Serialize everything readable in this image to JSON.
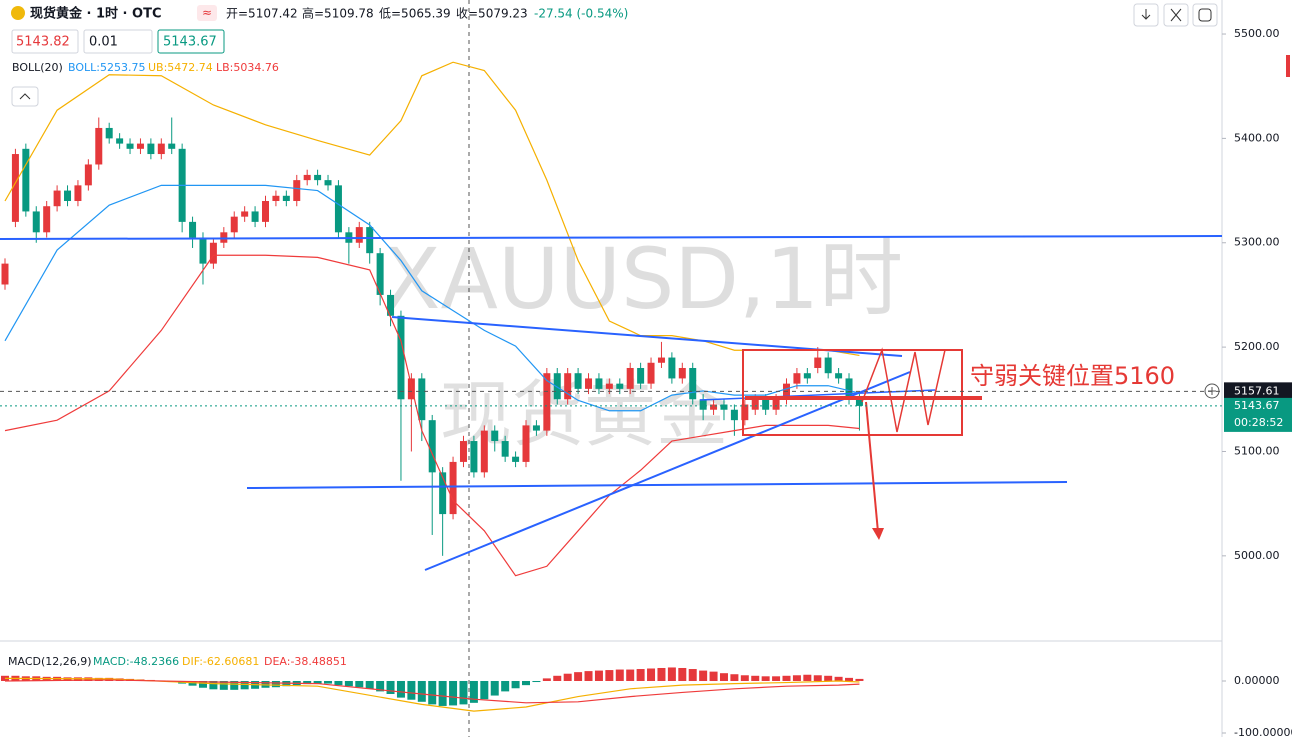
{
  "header": {
    "symbol": "现货黄金 · 1时 · OTC",
    "ohlc": [
      "开=5107.42",
      "高=5109.78",
      "低=5065.39",
      "收=5079.23"
    ],
    "change": "-27.54 (-0.54%)",
    "inputs": [
      "5143.82",
      "0.01",
      "5143.67"
    ]
  },
  "chart_data": [
    {
      "type": "candlestick",
      "watermark": [
        "XAUUSD,1时",
        "现货黄金"
      ],
      "annotation": "守弱关键位置5160",
      "indicator_legend": [
        "BOLL(20)",
        "BOLL:5253.75",
        "UB:5472.74",
        "LB:5034.76"
      ],
      "up_color": "#e5383b",
      "down_color": "#089981",
      "ylim": [
        4918.4,
        5532.6
      ],
      "yticks": [
        {
          "value": 5000,
          "label": "5000.00"
        },
        {
          "value": 5100,
          "label": "5100.00"
        },
        {
          "value": 5200,
          "label": "5200.00"
        },
        {
          "value": 5300,
          "label": "5300.00"
        },
        {
          "value": 5400,
          "label": "5400.00"
        },
        {
          "value": 5500,
          "label": "5500.00"
        }
      ],
      "grid": false,
      "crosshair_price": 5157.61,
      "last_price": 5143.67,
      "countdown": "00:28:52",
      "open": [
        5260,
        5320,
        5390,
        5330,
        5310,
        5335,
        5350,
        5340,
        5355,
        5375,
        5410,
        5400,
        5395,
        5390,
        5395,
        5385,
        5395,
        5390,
        5320,
        5305,
        5280,
        5300,
        5310,
        5325,
        5330,
        5320,
        5340,
        5345,
        5340,
        5360,
        5365,
        5360,
        5355,
        5310,
        5300,
        5315,
        5290,
        5250,
        5230,
        5150,
        5170,
        5130,
        5080,
        5040,
        5090,
        5110,
        5080,
        5120,
        5110,
        5095,
        5090,
        5125,
        5120,
        5175,
        5150,
        5175,
        5160,
        5170,
        5160,
        5165,
        5160,
        5180,
        5165,
        5185,
        5190,
        5170,
        5180,
        5150,
        5140,
        5145,
        5140,
        5130,
        5140,
        5150,
        5140,
        5150,
        5165,
        5175,
        5180,
        5190,
        5175,
        5170,
        5150
      ],
      "high": [
        5285,
        5390,
        5395,
        5335,
        5340,
        5355,
        5355,
        5360,
        5380,
        5420,
        5415,
        5405,
        5400,
        5400,
        5400,
        5400,
        5420,
        5395,
        5325,
        5310,
        5305,
        5315,
        5330,
        5335,
        5335,
        5345,
        5350,
        5350,
        5365,
        5370,
        5370,
        5365,
        5360,
        5315,
        5320,
        5320,
        5295,
        5255,
        5235,
        5175,
        5175,
        5135,
        5085,
        5095,
        5115,
        5115,
        5125,
        5125,
        5115,
        5100,
        5130,
        5130,
        5180,
        5180,
        5180,
        5180,
        5175,
        5175,
        5170,
        5170,
        5185,
        5185,
        5190,
        5205,
        5195,
        5185,
        5185,
        5155,
        5150,
        5150,
        5145,
        5150,
        5155,
        5155,
        5155,
        5170,
        5180,
        5180,
        5200,
        5195,
        5180,
        5175,
        5155
      ],
      "low": [
        5255,
        5315,
        5325,
        5300,
        5305,
        5330,
        5335,
        5335,
        5350,
        5370,
        5395,
        5390,
        5385,
        5385,
        5380,
        5380,
        5385,
        5310,
        5295,
        5260,
        5275,
        5295,
        5305,
        5320,
        5315,
        5315,
        5335,
        5335,
        5335,
        5355,
        5355,
        5350,
        5305,
        5280,
        5295,
        5280,
        5240,
        5220,
        5072,
        5100,
        5110,
        5020,
        5000,
        5035,
        5085,
        5075,
        5075,
        5100,
        5090,
        5085,
        5085,
        5115,
        5115,
        5145,
        5145,
        5155,
        5155,
        5155,
        5155,
        5155,
        5155,
        5160,
        5160,
        5180,
        5165,
        5165,
        5145,
        5130,
        5135,
        5130,
        5115,
        5125,
        5135,
        5135,
        5135,
        5145,
        5160,
        5165,
        5175,
        5170,
        5165,
        5145,
        5120
      ],
      "close": [
        5280,
        5385,
        5330,
        5310,
        5335,
        5350,
        5340,
        5355,
        5375,
        5410,
        5400,
        5395,
        5390,
        5395,
        5385,
        5395,
        5390,
        5320,
        5305,
        5280,
        5300,
        5310,
        5325,
        5330,
        5320,
        5340,
        5345,
        5340,
        5360,
        5365,
        5360,
        5355,
        5310,
        5300,
        5315,
        5290,
        5250,
        5230,
        5150,
        5170,
        5130,
        5080,
        5040,
        5090,
        5110,
        5080,
        5120,
        5110,
        5095,
        5090,
        5125,
        5120,
        5175,
        5150,
        5175,
        5160,
        5170,
        5160,
        5165,
        5160,
        5180,
        5165,
        5185,
        5190,
        5170,
        5180,
        5150,
        5140,
        5145,
        5140,
        5130,
        5145,
        5150,
        5140,
        5150,
        5165,
        5175,
        5170,
        5190,
        5175,
        5170,
        5150,
        5143.67
      ],
      "series": [
        {
          "color": "#f5b000",
          "x": [
            0,
            5,
            10,
            15,
            20,
            25,
            30,
            35,
            38,
            40,
            43,
            46,
            49,
            52,
            55,
            58,
            61,
            64,
            67,
            70,
            73,
            76,
            79,
            82
          ],
          "values": [
            5340,
            5427,
            5461,
            5460,
            5432,
            5413,
            5398,
            5384,
            5417,
            5460,
            5473,
            5465,
            5427,
            5360,
            5283,
            5225,
            5211,
            5211,
            5206,
            5197,
            5197,
            5197,
            5197,
            5192
          ]
        },
        {
          "color": "#2196f3",
          "x": [
            0,
            5,
            10,
            15,
            20,
            25,
            30,
            35,
            38,
            40,
            43,
            46,
            49,
            52,
            55,
            58,
            61,
            64,
            67,
            70,
            73,
            76,
            79,
            82
          ],
          "values": [
            5206,
            5293,
            5336,
            5355,
            5355,
            5355,
            5350,
            5317,
            5283,
            5254,
            5235,
            5216,
            5201,
            5168,
            5149,
            5139,
            5139,
            5154,
            5158,
            5154,
            5154,
            5163,
            5163,
            5156
          ]
        },
        {
          "color": "#ef3b3b",
          "x": [
            0,
            5,
            10,
            15,
            20,
            25,
            30,
            35,
            38,
            40,
            43,
            46,
            49,
            52,
            55,
            58,
            61,
            64,
            67,
            70,
            73,
            76,
            79,
            82
          ],
          "values": [
            5120,
            5130,
            5158,
            5216,
            5288,
            5288,
            5286,
            5274,
            5206,
            5120,
            5053,
            5024,
            4981,
            4990,
            5024,
            5058,
            5082,
            5110,
            5115,
            5120,
            5125,
            5125,
            5125,
            5122
          ]
        }
      ]
    },
    {
      "type": "bar",
      "indicator_legend": [
        "MACD(12,26,9)",
        "MACD:-48.2366",
        "DIF:-62.60681",
        "DEA:-38.48851"
      ],
      "up_color": "#e5383b",
      "down_color": "#089981",
      "ylim": [
        -107.7,
        69.2
      ],
      "yticks": [
        {
          "value": 0,
          "label": "0.00000"
        },
        {
          "value": -100,
          "label": "-100.00000"
        }
      ],
      "values": [
        10,
        10,
        9,
        9,
        8,
        8,
        7,
        7,
        7,
        6,
        6,
        5,
        4,
        3,
        2,
        1,
        -2,
        -5,
        -9,
        -13,
        -16,
        -17,
        -17,
        -16,
        -15,
        -13,
        -12,
        -10,
        -8,
        -6,
        -5,
        -5,
        -8,
        -10,
        -12,
        -15,
        -20,
        -25,
        -32,
        -36,
        -40,
        -45,
        -48,
        -47,
        -45,
        -42,
        -35,
        -28,
        -20,
        -14,
        -8,
        -2,
        5,
        10,
        14,
        17,
        19,
        20,
        21,
        22,
        22,
        23,
        24,
        25,
        26,
        25,
        23,
        20,
        18,
        15,
        13,
        11,
        10,
        9,
        9,
        10,
        11,
        12,
        11,
        10,
        8,
        6,
        4
      ],
      "series": [
        {
          "color": "#f5b000",
          "x": [
            0,
            10,
            20,
            30,
            40,
            45,
            50,
            55,
            60,
            65,
            70,
            75,
            80,
            82
          ],
          "values": [
            5,
            4,
            -5,
            -10,
            -45,
            -58,
            -50,
            -30,
            -15,
            -8,
            -5,
            -3,
            0,
            -2
          ]
        },
        {
          "color": "#ef3b3b",
          "x": [
            0,
            10,
            20,
            30,
            40,
            45,
            50,
            55,
            60,
            65,
            70,
            75,
            80,
            82
          ],
          "values": [
            0,
            2,
            -2,
            -5,
            -25,
            -35,
            -42,
            -40,
            -30,
            -22,
            -15,
            -10,
            -8,
            -6
          ]
        }
      ]
    }
  ]
}
